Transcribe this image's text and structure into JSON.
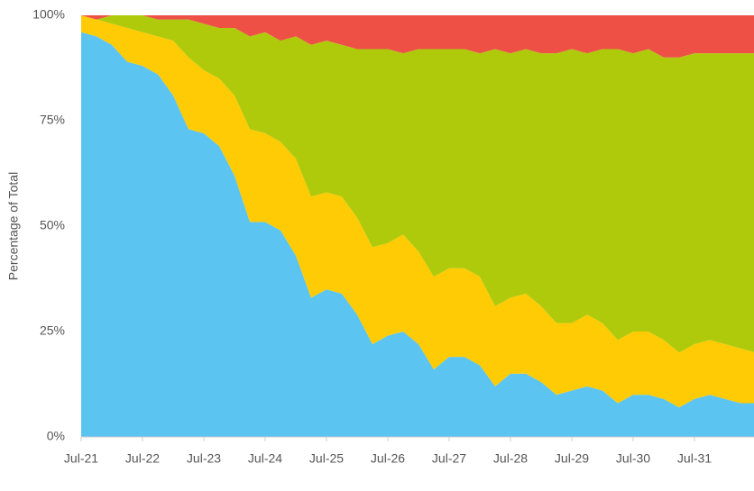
{
  "chart_data": {
    "type": "stacked_area",
    "y_label": "Percentage of Total",
    "categories": [
      "Jul-21",
      null,
      null,
      null,
      "Jul-22",
      null,
      null,
      null,
      "Jul-23",
      null,
      null,
      null,
      "Jul-24",
      null,
      null,
      null,
      "Jul-25",
      null,
      null,
      null,
      "Jul-26",
      null,
      null,
      null,
      "Jul-27",
      null,
      null,
      null,
      "Jul-28",
      null,
      null,
      null,
      "Jul-29",
      null,
      null,
      null,
      "Jul-30",
      null,
      null,
      null,
      "Jul-31",
      null,
      null,
      null,
      null
    ],
    "series": [
      {
        "color": "#5bc4f1",
        "values": [
          96,
          95,
          93,
          89,
          88,
          86,
          81,
          73,
          72,
          69,
          62,
          51,
          51,
          49,
          43,
          33,
          35,
          34,
          29,
          22,
          24,
          25,
          22,
          16,
          19,
          19,
          17,
          12,
          15,
          15,
          13,
          10,
          11,
          12,
          11,
          8,
          10,
          10,
          9,
          7,
          9,
          10,
          9,
          8,
          8
        ]
      },
      {
        "color": "#ffcb05",
        "values": [
          4,
          4,
          5,
          8,
          8,
          9,
          13,
          17,
          15,
          16,
          19,
          22,
          21,
          21,
          23,
          24,
          23,
          23,
          23,
          23,
          22,
          23,
          22,
          22,
          21,
          21,
          21,
          19,
          18,
          19,
          18,
          17,
          16,
          17,
          16,
          15,
          15,
          15,
          14,
          13,
          13,
          13,
          13,
          13,
          12
        ]
      },
      {
        "color": "#afca0b",
        "values": [
          0,
          0,
          2,
          3,
          4,
          4,
          5,
          9,
          11,
          12,
          16,
          22,
          24,
          24,
          29,
          36,
          36,
          36,
          40,
          47,
          46,
          43,
          48,
          54,
          52,
          52,
          53,
          61,
          58,
          58,
          60,
          64,
          65,
          62,
          65,
          69,
          66,
          67,
          67,
          70,
          69,
          68,
          69,
          70,
          71
        ]
      },
      {
        "color": "#ee5046",
        "values": [
          0,
          1,
          0,
          0,
          0,
          1,
          1,
          1,
          2,
          3,
          3,
          5,
          4,
          6,
          5,
          7,
          6,
          7,
          8,
          8,
          8,
          9,
          8,
          8,
          8,
          8,
          9,
          8,
          9,
          8,
          9,
          9,
          8,
          9,
          8,
          8,
          9,
          8,
          10,
          10,
          9,
          9,
          9,
          9,
          9
        ]
      }
    ],
    "ylim": [
      0,
      100
    ],
    "yticks": [
      {
        "value": 0,
        "label": "0%"
      },
      {
        "value": 25,
        "label": "25%"
      },
      {
        "value": 50,
        "label": "50%"
      },
      {
        "value": 75,
        "label": "75%"
      },
      {
        "value": 100,
        "label": "100%"
      }
    ],
    "grid": false
  }
}
